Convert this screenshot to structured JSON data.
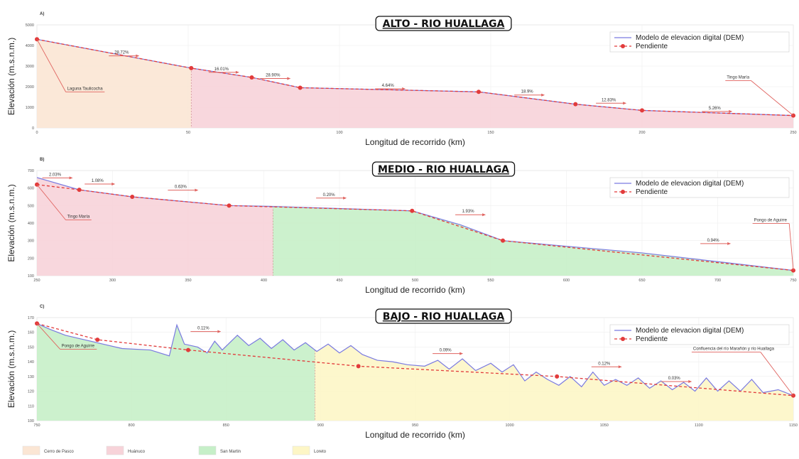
{
  "legend": {
    "dem_label": "Modelo de elevacion digital (DEM)",
    "slope_label": "Pendiente"
  },
  "bottom_legend": [
    {
      "name": "Cerro de Pasco",
      "color": "#fbe6d4"
    },
    {
      "name": "Huánuco",
      "color": "#f7d3d9"
    },
    {
      "name": "San Martin",
      "color": "#c6efc8"
    },
    {
      "name": "Loreto",
      "color": "#fdf6c6"
    }
  ],
  "colors": {
    "dem_line": "#7a7ae0",
    "slope_line": "#e23b3b",
    "annotation": "#e0635f",
    "grid": "#eeeeee"
  },
  "chart_data": [
    {
      "type": "line",
      "panel_letter": "A)",
      "title": "ALTO - RIO HUALLAGA",
      "xlabel": "Longitud de recorrido (km)",
      "ylabel": "Elevación (m.s.n.m.)",
      "xlim": [
        0,
        250
      ],
      "ylim": [
        0,
        5000
      ],
      "xticks": [
        0,
        50,
        100,
        150,
        200,
        250
      ],
      "yticks": [
        0,
        1000,
        2000,
        3000,
        4000,
        5000
      ],
      "grid": true,
      "legend_position": "top-right",
      "slope_points": [
        [
          0,
          4300
        ],
        [
          51,
          2900
        ],
        [
          71,
          2450
        ],
        [
          87,
          1950
        ],
        [
          146,
          1750
        ],
        [
          178,
          1150
        ],
        [
          200,
          850
        ],
        [
          250,
          600
        ]
      ],
      "dem_points": [
        [
          0,
          4300
        ],
        [
          51,
          2900
        ],
        [
          71,
          2450
        ],
        [
          87,
          1950
        ],
        [
          146,
          1750
        ],
        [
          178,
          1150
        ],
        [
          200,
          850
        ],
        [
          250,
          600
        ]
      ],
      "regions": [
        {
          "name": "Cerro de Pasco",
          "x0": 0,
          "x1": 51
        },
        {
          "name": "Huánuco",
          "x0": 51,
          "x1": 250
        }
      ],
      "slope_labels": [
        {
          "text": "28.72%",
          "x": 28,
          "y": 3600
        },
        {
          "text": "16.01%",
          "x": 61,
          "y": 2800
        },
        {
          "text": "28.90%",
          "x": 78,
          "y": 2500
        },
        {
          "text": "4.64%",
          "x": 116,
          "y": 2000
        },
        {
          "text": "18.9%",
          "x": 162,
          "y": 1700
        },
        {
          "text": "12.83%",
          "x": 189,
          "y": 1300
        },
        {
          "text": "5.26%",
          "x": 224,
          "y": 900
        }
      ],
      "annotations": [
        {
          "text": "Laguna Taulicocha",
          "x": 10,
          "y": 1850,
          "target_x": 0,
          "target_y": 4300
        },
        {
          "text": "Tingo María",
          "x": 228,
          "y": 2400,
          "target_x": 250,
          "target_y": 600
        }
      ]
    },
    {
      "type": "line",
      "panel_letter": "B)",
      "title": "MEDIO - RIO HUALLAGA",
      "xlabel": "Longitud de recorrido (km)",
      "ylabel": "Elevación (m.s.n.m.)",
      "xlim": [
        250,
        750
      ],
      "ylim": [
        100,
        700
      ],
      "xticks": [
        250,
        300,
        350,
        400,
        450,
        500,
        550,
        600,
        650,
        700,
        750
      ],
      "yticks": [
        100,
        200,
        300,
        400,
        500,
        600,
        700
      ],
      "grid": true,
      "legend_position": "top-right",
      "slope_points": [
        [
          250,
          620
        ],
        [
          278,
          590
        ],
        [
          313,
          550
        ],
        [
          377,
          500
        ],
        [
          498,
          470
        ],
        [
          558,
          300
        ],
        [
          750,
          130
        ]
      ],
      "dem_points": [
        [
          250,
          660
        ],
        [
          278,
          590
        ],
        [
          313,
          550
        ],
        [
          377,
          500
        ],
        [
          406,
          495
        ],
        [
          498,
          470
        ],
        [
          530,
          390
        ],
        [
          558,
          300
        ],
        [
          650,
          230
        ],
        [
          750,
          130
        ]
      ],
      "regions": [
        {
          "name": "Huánuco",
          "x0": 250,
          "x1": 406
        },
        {
          "name": "San Martin",
          "x0": 406,
          "x1": 750
        }
      ],
      "slope_labels": [
        {
          "text": "2.03%",
          "x": 262,
          "y": 670
        },
        {
          "text": "1.08%",
          "x": 290,
          "y": 635
        },
        {
          "text": "0.63%",
          "x": 345,
          "y": 600
        },
        {
          "text": "0.20%",
          "x": 443,
          "y": 555
        },
        {
          "text": "1.93%",
          "x": 535,
          "y": 460
        },
        {
          "text": "0.94%",
          "x": 697,
          "y": 295
        }
      ],
      "annotations": [
        {
          "text": "Tingo María",
          "x": 270,
          "y": 430,
          "target_x": 250,
          "target_y": 620
        },
        {
          "text": "Pongo de Aguirre",
          "x": 724,
          "y": 410,
          "target_x": 750,
          "target_y": 130
        }
      ]
    },
    {
      "type": "line",
      "panel_letter": "C)",
      "title": "BAJO - RIO HUALLAGA",
      "xlabel": "Longitud de recorrido (km)",
      "ylabel": "Elevación (m.s.n.m.)",
      "xlim": [
        750,
        1150
      ],
      "ylim": [
        100,
        170
      ],
      "xticks": [
        750,
        800,
        850,
        900,
        950,
        1000,
        1050,
        1100,
        1150
      ],
      "yticks": [
        100,
        110,
        120,
        130,
        140,
        150,
        160,
        170
      ],
      "grid": true,
      "legend_position": "top-right",
      "slope_points": [
        [
          750,
          166
        ],
        [
          782,
          155
        ],
        [
          830,
          148
        ],
        [
          920,
          137
        ],
        [
          1025,
          130
        ],
        [
          1150,
          117
        ]
      ],
      "dem_points": [
        [
          750,
          166
        ],
        [
          757,
          162
        ],
        [
          765,
          158
        ],
        [
          775,
          155
        ],
        [
          785,
          152
        ],
        [
          795,
          149
        ],
        [
          810,
          148
        ],
        [
          820,
          144
        ],
        [
          824,
          165
        ],
        [
          828,
          152
        ],
        [
          835,
          150
        ],
        [
          840,
          146
        ],
        [
          844,
          154
        ],
        [
          848,
          148
        ],
        [
          856,
          158
        ],
        [
          862,
          151
        ],
        [
          868,
          156
        ],
        [
          874,
          149
        ],
        [
          880,
          155
        ],
        [
          886,
          148
        ],
        [
          892,
          153
        ],
        [
          898,
          147
        ],
        [
          904,
          152
        ],
        [
          910,
          146
        ],
        [
          916,
          151
        ],
        [
          922,
          145
        ],
        [
          930,
          141
        ],
        [
          938,
          140
        ],
        [
          946,
          138
        ],
        [
          955,
          137
        ],
        [
          962,
          141
        ],
        [
          968,
          135
        ],
        [
          975,
          142
        ],
        [
          982,
          134
        ],
        [
          990,
          139
        ],
        [
          996,
          133
        ],
        [
          1002,
          138
        ],
        [
          1008,
          127
        ],
        [
          1014,
          133
        ],
        [
          1020,
          128
        ],
        [
          1026,
          124
        ],
        [
          1032,
          130
        ],
        [
          1038,
          123
        ],
        [
          1044,
          133
        ],
        [
          1050,
          124
        ],
        [
          1056,
          128
        ],
        [
          1062,
          124
        ],
        [
          1068,
          129
        ],
        [
          1074,
          122
        ],
        [
          1080,
          127
        ],
        [
          1086,
          121
        ],
        [
          1092,
          126
        ],
        [
          1098,
          120
        ],
        [
          1104,
          129
        ],
        [
          1110,
          120
        ],
        [
          1116,
          127
        ],
        [
          1122,
          120
        ],
        [
          1128,
          128
        ],
        [
          1134,
          119
        ],
        [
          1142,
          121
        ],
        [
          1150,
          117
        ]
      ],
      "regions": [
        {
          "name": "San Martin",
          "x0": 750,
          "x1": 897
        },
        {
          "name": "Loreto",
          "x0": 897,
          "x1": 1150
        }
      ],
      "slope_labels": [
        {
          "text": "0.11%",
          "x": 838,
          "y": 162
        },
        {
          "text": "0.09%",
          "x": 966,
          "y": 147
        },
        {
          "text": "0.12%",
          "x": 1050,
          "y": 138
        },
        {
          "text": "0.03%",
          "x": 1087,
          "y": 128
        }
      ],
      "annotations": [
        {
          "text": "Pongo de Aguirre",
          "x": 763,
          "y": 150,
          "target_x": 750,
          "target_y": 166
        },
        {
          "text": "Confluencia del río Marañón y río Huallaga",
          "x": 1097,
          "y": 148,
          "target_x": 1150,
          "target_y": 117
        }
      ]
    }
  ]
}
